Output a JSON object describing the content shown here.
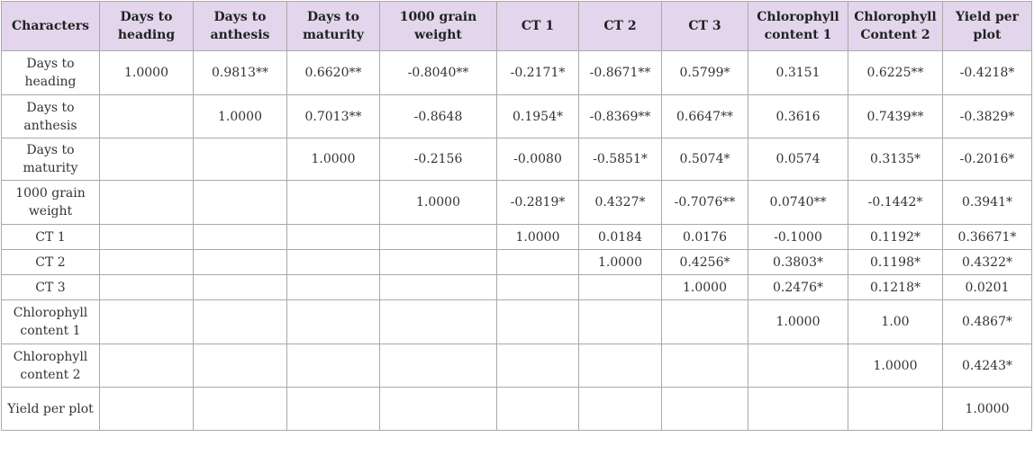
{
  "table": {
    "header": [
      "Characters",
      "Days to heading",
      "Days to anthesis",
      "Days to maturity",
      "1000 grain weight",
      "CT 1",
      "CT 2",
      "CT 3",
      "Chlorophyll content 1",
      "Chlorophyll Content 2",
      "Yield per plot"
    ],
    "rows": [
      [
        "Days to heading",
        "1.0000",
        "0.9813**",
        "0.6620**",
        "-0.8040**",
        "-0.2171*",
        "-0.8671**",
        "0.5799*",
        "0.3151",
        "0.6225**",
        "-0.4218*"
      ],
      [
        "Days to anthesis",
        null,
        "1.0000",
        "0.7013**",
        "-0.8648",
        "0.1954*",
        "-0.8369**",
        "0.6647**",
        "0.3616",
        "0.7439**",
        "-0.3829*"
      ],
      [
        "Days to maturity",
        null,
        null,
        "1.0000",
        "-0.2156",
        "-0.0080",
        "-0.5851*",
        "0.5074*",
        "0.0574",
        "0.3135*",
        "-0.2016*"
      ],
      [
        "1000 grain weight",
        null,
        null,
        null,
        "1.0000",
        "-0.2819*",
        "0.4327*",
        "-0.7076**",
        "0.0740**",
        "-0.1442*",
        "0.3941*"
      ],
      [
        "CT 1",
        null,
        null,
        null,
        null,
        "1.0000",
        "0.0184",
        "0.0176",
        "-0.1000",
        "0.1192*",
        "0.36671*"
      ],
      [
        "CT 2",
        null,
        null,
        null,
        null,
        null,
        "1.0000",
        "0.4256*",
        "0.3803*",
        "0.1198*",
        "0.4322*"
      ],
      [
        "CT 3",
        null,
        null,
        null,
        null,
        null,
        null,
        "1.0000",
        "0.2476*",
        "0.1218*",
        "0.0201"
      ],
      [
        "Chlorophyll content 1",
        null,
        null,
        null,
        null,
        null,
        null,
        null,
        "1.0000",
        "1.00",
        "0.4867*"
      ],
      [
        "Chlorophyll content 2",
        null,
        null,
        null,
        null,
        null,
        null,
        null,
        null,
        "1.0000",
        "0.4243*"
      ],
      [
        "Yield per plot",
        null,
        null,
        null,
        null,
        null,
        null,
        null,
        null,
        null,
        "1.0000"
      ]
    ]
  }
}
